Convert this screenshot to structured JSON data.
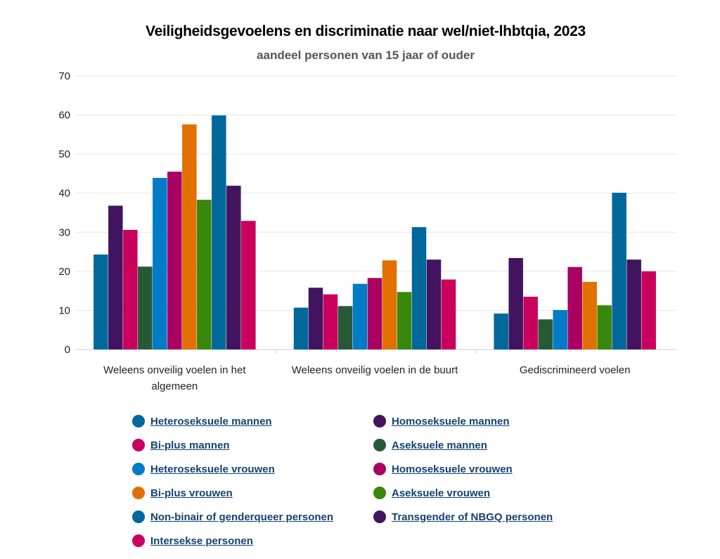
{
  "chart_data": {
    "type": "bar",
    "title": "Veiligheidsgevoelens en discriminatie naar wel/niet-lhbtqia, 2023",
    "subtitle": "aandeel personen van 15 jaar of ouder",
    "xlabel": "",
    "ylabel": "",
    "ylim": [
      0,
      70
    ],
    "yticks": [
      0,
      10,
      20,
      30,
      40,
      50,
      60,
      70
    ],
    "grid": true,
    "legend_position": "bottom",
    "categories": [
      [
        "Weleens onveilig voelen in het",
        "algemeen"
      ],
      [
        "Weleens onveilig voelen in de buurt"
      ],
      [
        "Gediscrimineerd voelen"
      ]
    ],
    "series": [
      {
        "name": "Heteroseksuele mannen",
        "color": "#01689b",
        "values": [
          24.3,
          10.7,
          9.2
        ]
      },
      {
        "name": "Homoseksuele mannen",
        "color": "#42145f",
        "values": [
          36.8,
          15.8,
          23.4
        ]
      },
      {
        "name": "Bi-plus mannen",
        "color": "#ca005d",
        "values": [
          30.6,
          14.1,
          13.5
        ]
      },
      {
        "name": "Aseksuele mannen",
        "color": "#275937",
        "values": [
          21.2,
          11.1,
          7.7
        ]
      },
      {
        "name": "Heteroseksuele vrouwen",
        "color": "#007bc7",
        "values": [
          43.9,
          16.8,
          10.1
        ]
      },
      {
        "name": "Homoseksuele vrouwen",
        "color": "#a90061",
        "values": [
          45.5,
          18.3,
          21.1
        ]
      },
      {
        "name": "Bi-plus vrouwen",
        "color": "#e17000",
        "values": [
          57.6,
          22.8,
          17.3
        ]
      },
      {
        "name": "Aseksuele vrouwen",
        "color": "#39870c",
        "values": [
          38.3,
          14.7,
          11.3
        ]
      },
      {
        "name": "Non-binair of genderqueer personen",
        "color": "#01689b",
        "values": [
          59.9,
          31.3,
          40.1
        ]
      },
      {
        "name": "Transgender of NBGQ personen",
        "color": "#42145f",
        "values": [
          41.9,
          23.0,
          23.0
        ]
      },
      {
        "name": "Intersekse personen",
        "color": "#ca005d",
        "values": [
          32.9,
          17.9,
          20.0
        ]
      }
    ]
  }
}
